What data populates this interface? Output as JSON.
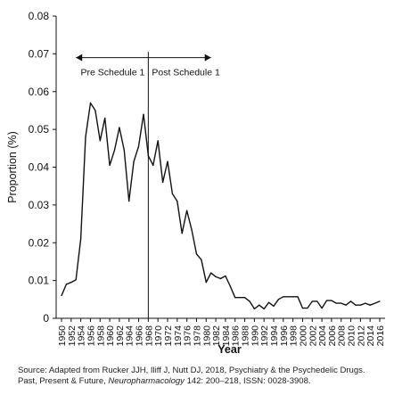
{
  "chart_data": {
    "type": "line",
    "ylabel": "Proportion (%)",
    "xlabel": "Year",
    "ylim": [
      0,
      0.08
    ],
    "xlim": [
      1950,
      2016
    ],
    "yticks": [
      0,
      0.01,
      0.02,
      0.03,
      0.04,
      0.05,
      0.06,
      0.07,
      0.08
    ],
    "ytick_labels": [
      "0",
      "0.01",
      "0.02",
      "0.03",
      "0.04",
      "0.05",
      "0.06",
      "0.07",
      "0.08"
    ],
    "xtick_labels": [
      "1950",
      "1952",
      "1954",
      "1956",
      "1958",
      "1960",
      "1962",
      "1964",
      "1966",
      "1968",
      "1970",
      "1972",
      "1974",
      "1976",
      "1978",
      "1980",
      "1982",
      "1984",
      "1986",
      "1988",
      "1990",
      "1992",
      "1994",
      "1996",
      "1998",
      "2000",
      "2002",
      "2004",
      "2006",
      "2008",
      "2010",
      "2012",
      "2014",
      "2016"
    ],
    "grid": false,
    "series": [
      {
        "color": "#111111",
        "x": [
          1950,
          1951,
          1952,
          1953,
          1954,
          1955,
          1956,
          1957,
          1958,
          1959,
          1960,
          1961,
          1962,
          1963,
          1964,
          1965,
          1966,
          1967,
          1968,
          1969,
          1970,
          1971,
          1972,
          1973,
          1974,
          1975,
          1976,
          1977,
          1978,
          1979,
          1980,
          1981,
          1982,
          1983,
          1984,
          1985,
          1986,
          1987,
          1988,
          1989,
          1990,
          1991,
          1992,
          1993,
          1994,
          1995,
          1996,
          1997,
          1998,
          1999,
          2000,
          2001,
          2002,
          2003,
          2004,
          2005,
          2006,
          2007,
          2008,
          2009,
          2010,
          2011,
          2012,
          2013,
          2014,
          2015,
          2016
        ],
        "y": [
          0.006,
          0.009,
          0.0095,
          0.0102,
          0.021,
          0.048,
          0.057,
          0.055,
          0.047,
          0.053,
          0.0405,
          0.0445,
          0.0505,
          0.0445,
          0.031,
          0.0415,
          0.0455,
          0.054,
          0.043,
          0.0405,
          0.047,
          0.036,
          0.0415,
          0.033,
          0.031,
          0.0225,
          0.0285,
          0.0235,
          0.017,
          0.0155,
          0.0095,
          0.012,
          0.011,
          0.0105,
          0.0112,
          0.0085,
          0.0055,
          0.0055,
          0.0055,
          0.0045,
          0.0025,
          0.0035,
          0.0025,
          0.0042,
          0.0032,
          0.005,
          0.0057,
          0.0057,
          0.0057,
          0.0057,
          0.0027,
          0.0027,
          0.0045,
          0.0045,
          0.0027,
          0.0047,
          0.0047,
          0.004,
          0.004,
          0.0035,
          0.0045,
          0.0035,
          0.0035,
          0.004,
          0.0035,
          0.004,
          0.0045
        ]
      }
    ],
    "annotations": {
      "divider_year": 1968,
      "left_label": "Pre Schedule 1",
      "right_label": "Post Schedule 1",
      "arrow_from_year": 1953,
      "arrow_to_year": 1981,
      "arrow_y": 0.069
    }
  },
  "source": {
    "prefix": "Source: Adapted from Rucker JJH, Iliff J, Nutt DJ, 2018, Psychiatry & the Psychedelic Drugs. Past, Present & Future, ",
    "journal": "Neuropharmacology",
    "suffix": " 142: 200–218, ISSN: 0028-3908."
  }
}
